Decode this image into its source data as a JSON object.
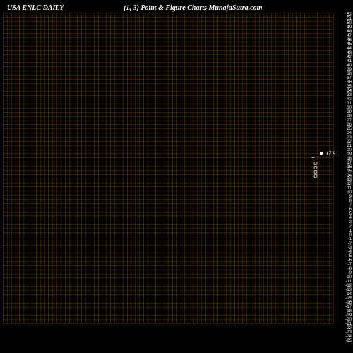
{
  "header": {
    "left": "USA ENLC DAILY",
    "center": "(1,  3) Point & Figure    Charts MunafaSutra.com"
  },
  "chart": {
    "type": "point-and-figure",
    "background_color": "#000000",
    "grid_color": "#8b5a00",
    "grid_opacity": 0.35,
    "text_color": "#ffffff",
    "box_size": 1,
    "reversal": 3,
    "grid_rows": 75,
    "grid_cols": 80,
    "y_axis": {
      "min": -25,
      "max": 52,
      "labels": [
        "52",
        "51",
        "50",
        "49",
        "48",
        "47",
        "46",
        "45",
        "44",
        "43",
        "42",
        "41",
        "40",
        "39",
        "38",
        "37",
        "36",
        "35",
        "34",
        "33",
        "32",
        "31",
        "30",
        "29",
        "28",
        "27",
        "26",
        "25",
        "24",
        "23",
        "22",
        "21",
        "20",
        "19",
        "18",
        "17",
        "16",
        "15",
        "14",
        "13",
        "12",
        "11",
        "10",
        "9",
        "8",
        "7",
        "6",
        "5",
        "4",
        "3",
        "2",
        "1",
        "0",
        "-1",
        "-2",
        "-3",
        "-4",
        "-5",
        "-6",
        "-7",
        "-8",
        "-9",
        "-10",
        "-11",
        "-12",
        "-13",
        "-14",
        "-15",
        "-16",
        "-17",
        "-18",
        "-19",
        "-20",
        "-21",
        "-22",
        "-23",
        "-24",
        "-25"
      ]
    },
    "data_column": {
      "marker_value": "17.91",
      "marker_row_index": 34,
      "glyphs": [
        "T",
        "O",
        "O",
        "O",
        "O"
      ],
      "col_position_pct": 96
    }
  }
}
